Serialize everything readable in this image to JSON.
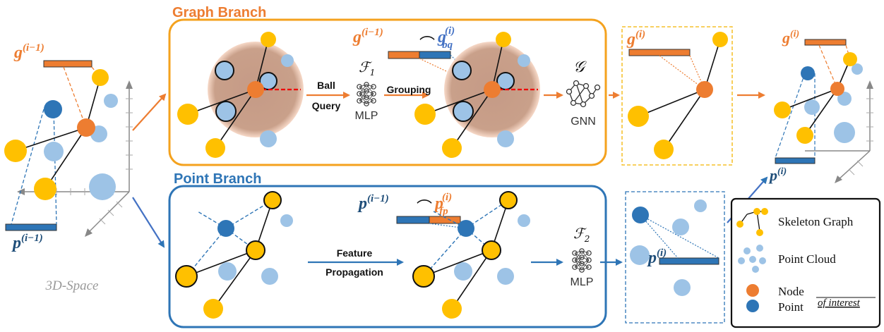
{
  "branches": {
    "graph_title": "Graph Branch",
    "point_title": "Point Branch"
  },
  "labels": {
    "space": "3D-Space",
    "ball_query_1": "Ball",
    "ball_query_2": "Query",
    "grouping": "Grouping",
    "mlp_1": "MLP",
    "mlp_2": "MLP",
    "gnn": "GNN",
    "feature_prop_1": "Feature",
    "feature_prop_2": "Propagation",
    "f1_base": "ℱ",
    "f1_sub": "1",
    "f2_base": "ℱ",
    "f2_sub": "2",
    "g_op": "𝒢"
  },
  "math": {
    "g_prev": "g",
    "p_prev": "p",
    "g_cur": "g",
    "p_cur": "p",
    "g_bq": "g",
    "p_fp": "p",
    "sup_prev": "(i−1)",
    "sup_cur": "(i)",
    "sub_bq": "bq",
    "sub_fp": "fp",
    "concat": "⌒"
  },
  "legend": {
    "skeleton": "Skeleton Graph",
    "cloud": "Point Cloud",
    "node": "Node",
    "point": "Point",
    "of_interest": "of interest"
  },
  "colors": {
    "orange": "#ED7D31",
    "blue": "#2E75B6",
    "yellow": "#FFC000",
    "light_blue": "#9DC3E6",
    "frame_orange": "#F4A21E",
    "frame_blue": "#2E75B6",
    "ball": "#C9A08A"
  }
}
